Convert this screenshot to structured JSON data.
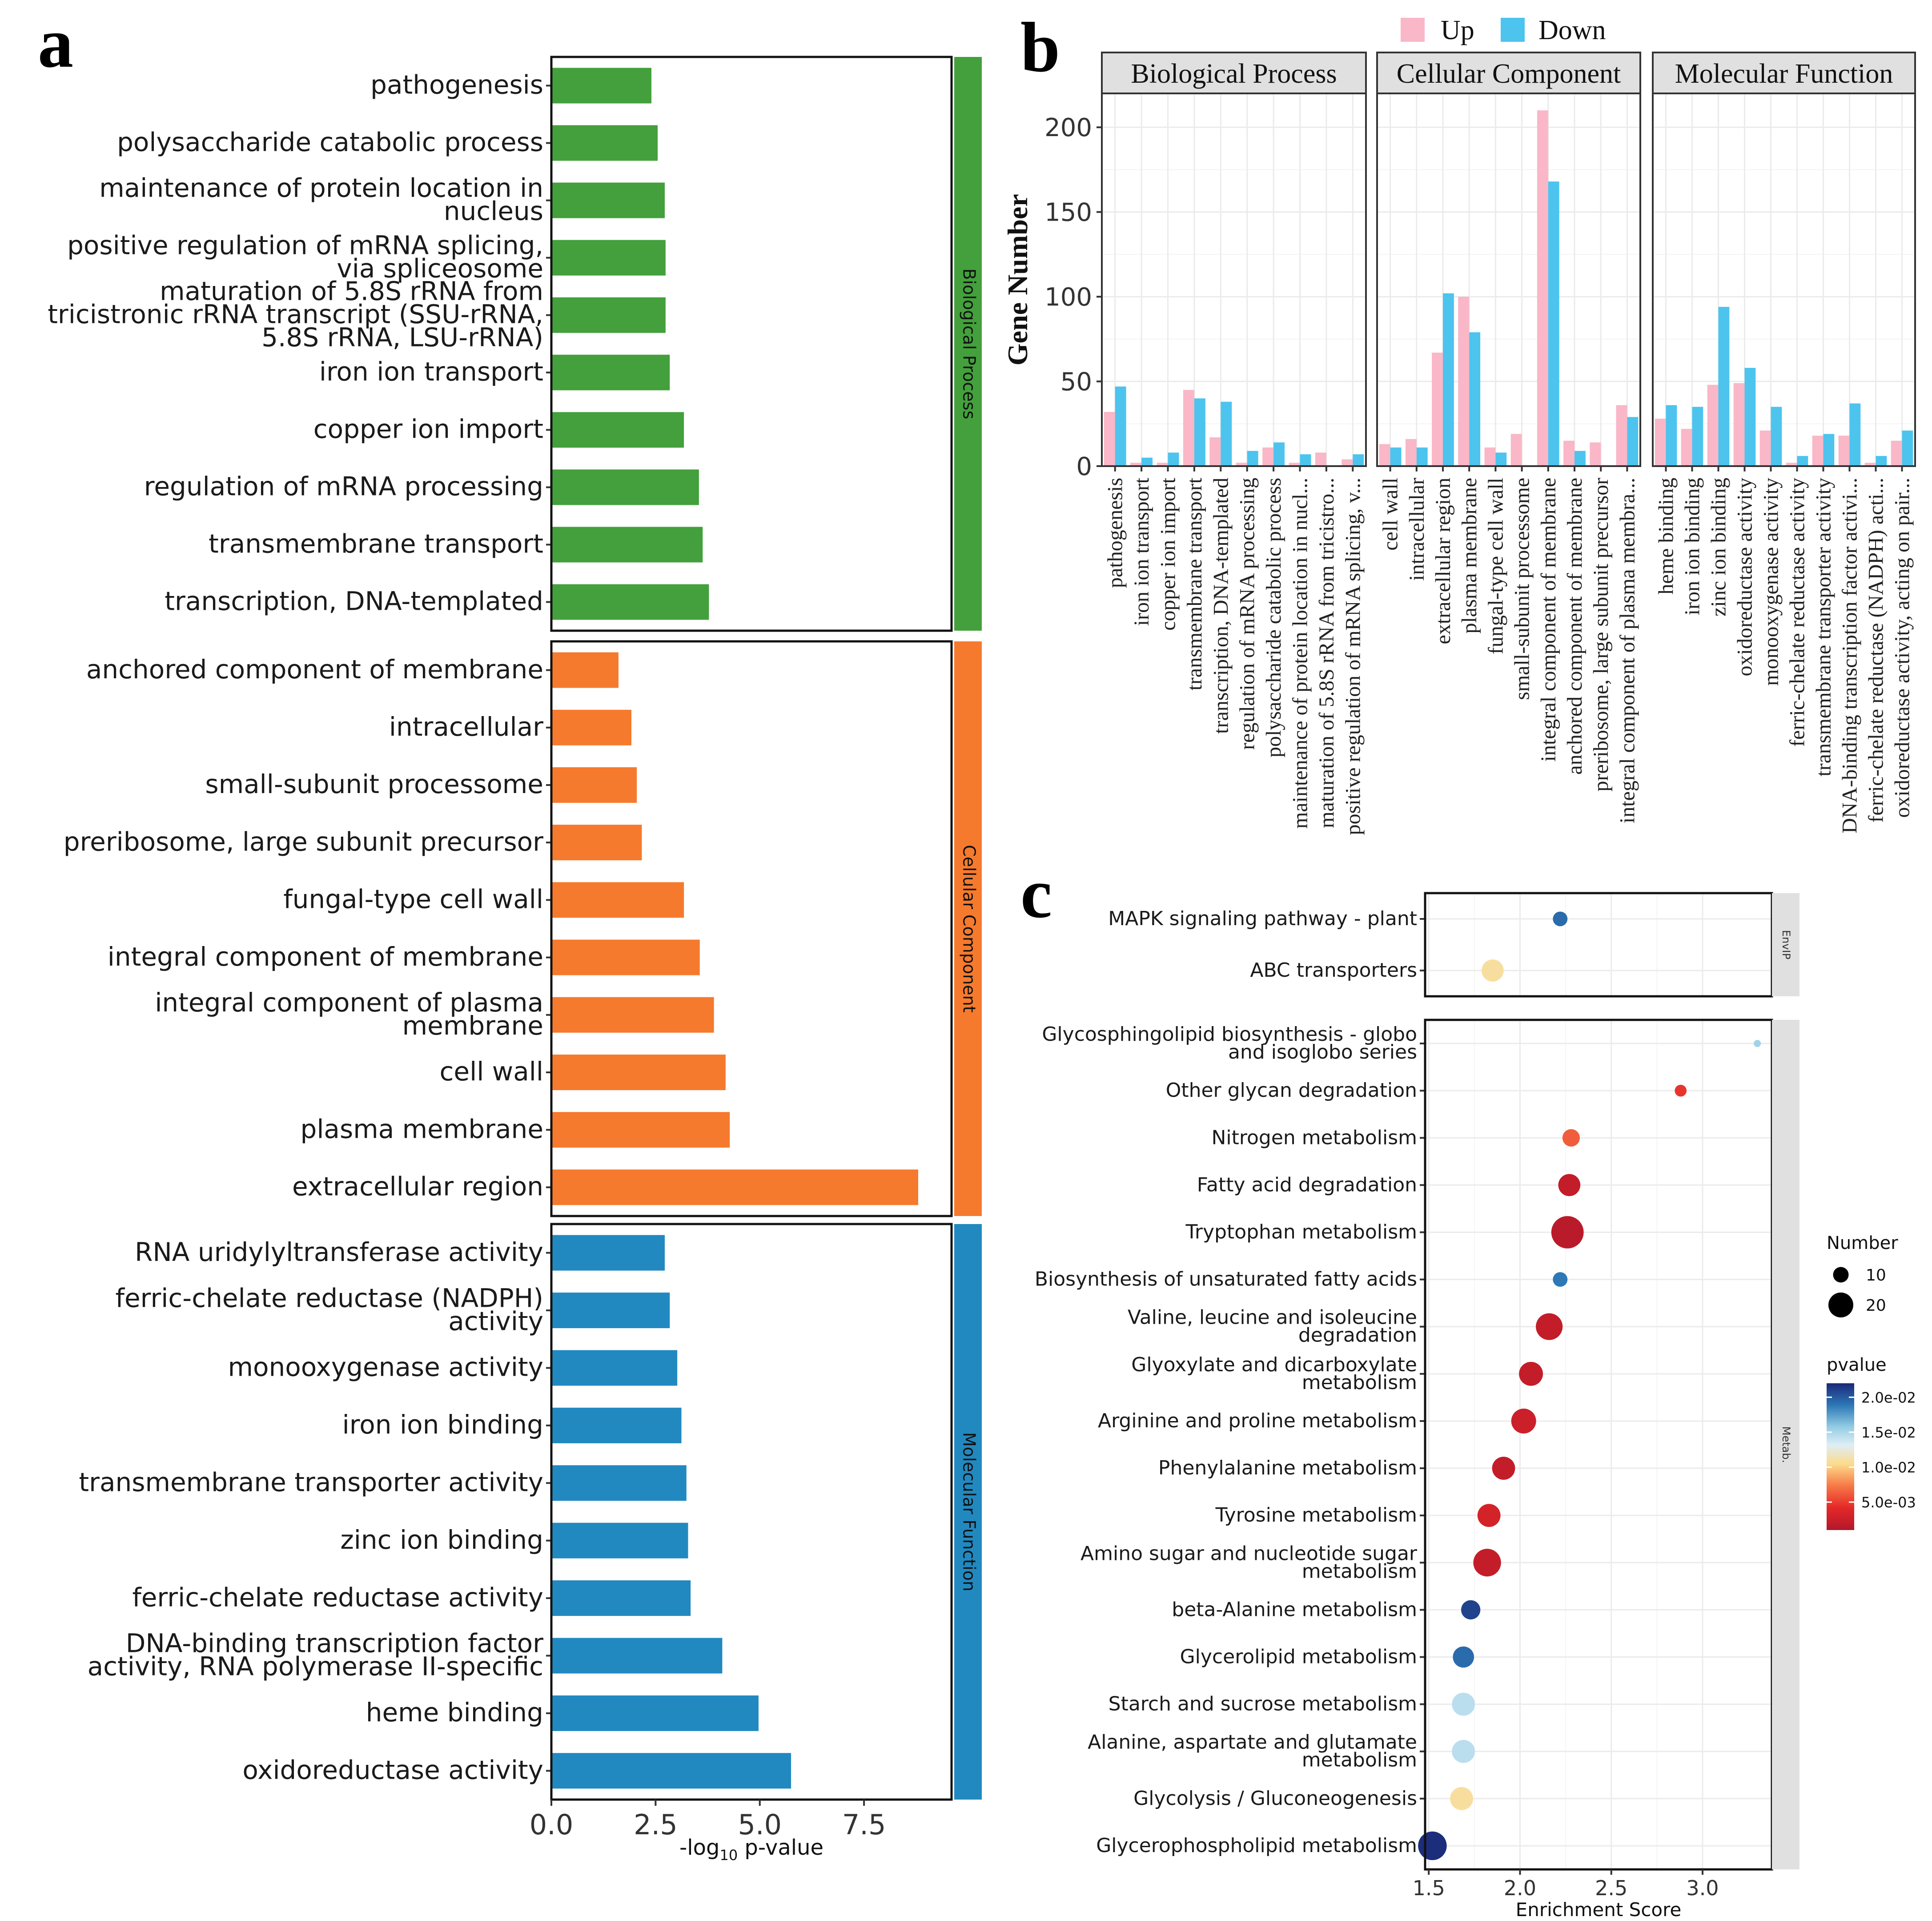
{
  "panel_labels": {
    "a": "a",
    "b": "b",
    "c": "c"
  },
  "colors": {
    "bp": "#43a03c",
    "cc": "#f57a2d",
    "mf": "#2189c0",
    "up": "#f9b7c7",
    "down": "#4cc4ee",
    "strip": "#e0e0e0",
    "grid": "#ebebeb"
  },
  "chart_data": [
    {
      "type": "bar",
      "orientation": "horizontal",
      "xlabel_prefix": "-log",
      "xlabel_sub": "10",
      "xlabel_suffix": " p-value",
      "xlim": [
        0,
        9.6
      ],
      "ticks": [
        {
          "v": 0,
          "t": "0.0"
        },
        {
          "v": 2.5,
          "t": "2.5"
        },
        {
          "v": 5,
          "t": "5.0"
        },
        {
          "v": 7.5,
          "t": "7.5"
        }
      ],
      "groups": [
        {
          "name": "Biological Process",
          "color_key": "bp",
          "items": [
            {
              "label": [
                "pathogenesis"
              ],
              "value": 2.4
            },
            {
              "label": [
                "polysaccharide catabolic process"
              ],
              "value": 2.55
            },
            {
              "label": [
                "maintenance of protein location in",
                "nucleus"
              ],
              "value": 2.72
            },
            {
              "label": [
                "positive regulation of mRNA splicing,",
                "via spliceosome"
              ],
              "value": 2.74
            },
            {
              "label": [
                "maturation of 5.8S rRNA from",
                "tricistronic rRNA transcript (SSU-rRNA,",
                "5.8S rRNA, LSU-rRNA)"
              ],
              "value": 2.74
            },
            {
              "label": [
                "iron ion transport"
              ],
              "value": 2.84
            },
            {
              "label": [
                "copper ion import"
              ],
              "value": 3.18
            },
            {
              "label": [
                "regulation of mRNA processing"
              ],
              "value": 3.54
            },
            {
              "label": [
                "transmembrane transport"
              ],
              "value": 3.63
            },
            {
              "label": [
                "transcription, DNA-templated"
              ],
              "value": 3.78
            }
          ]
        },
        {
          "name": "Cellular Component",
          "color_key": "cc",
          "items": [
            {
              "label": [
                "anchored component of membrane"
              ],
              "value": 1.61
            },
            {
              "label": [
                "intracellular"
              ],
              "value": 1.92
            },
            {
              "label": [
                "small-subunit processome"
              ],
              "value": 2.05
            },
            {
              "label": [
                "preribosome, large subunit precursor"
              ],
              "value": 2.17
            },
            {
              "label": [
                "fungal-type cell wall"
              ],
              "value": 3.18
            },
            {
              "label": [
                "integral component of membrane"
              ],
              "value": 3.56
            },
            {
              "label": [
                "integral component of plasma",
                "membrane"
              ],
              "value": 3.9
            },
            {
              "label": [
                "cell wall"
              ],
              "value": 4.18
            },
            {
              "label": [
                "plasma membrane"
              ],
              "value": 4.28
            },
            {
              "label": [
                "extracellular region"
              ],
              "value": 8.8
            }
          ]
        },
        {
          "name": "Molecular Function",
          "color_key": "mf",
          "items": [
            {
              "label": [
                "RNA uridylyltransferase activity"
              ],
              "value": 2.72
            },
            {
              "label": [
                "ferric-chelate reductase (NADPH)",
                "activity"
              ],
              "value": 2.84
            },
            {
              "label": [
                "monooxygenase activity"
              ],
              "value": 3.02
            },
            {
              "label": [
                "iron ion binding"
              ],
              "value": 3.12
            },
            {
              "label": [
                "transmembrane transporter activity"
              ],
              "value": 3.24
            },
            {
              "label": [
                "zinc ion binding"
              ],
              "value": 3.28
            },
            {
              "label": [
                "ferric-chelate reductase activity"
              ],
              "value": 3.34
            },
            {
              "label": [
                "DNA-binding transcription factor",
                "activity, RNA polymerase II-specific"
              ],
              "value": 4.1
            },
            {
              "label": [
                "heme binding"
              ],
              "value": 4.97
            },
            {
              "label": [
                "oxidoreductase activity"
              ],
              "value": 5.75
            }
          ]
        }
      ]
    },
    {
      "type": "bar",
      "orientation": "vertical",
      "ylabel": "Gene Number",
      "ylim": [
        0,
        220
      ],
      "yticks": [
        0,
        50,
        100,
        150,
        200
      ],
      "legend": {
        "position": "top",
        "entries": [
          {
            "name": "Up",
            "color_key": "up"
          },
          {
            "name": "Down",
            "color_key": "down"
          }
        ]
      },
      "facets": [
        {
          "name": "Biological Process",
          "categories": [
            "pathogenesis",
            "iron ion transport",
            "copper ion import",
            "transmembrane transport",
            "transcription, DNA-templated",
            "regulation of mRNA processing",
            "polysaccharide catabolic process",
            "maintenance of protein location in nucl...",
            "maturation of 5.8S rRNA from tricistro...",
            "positive regulation of mRNA splicing, v..."
          ],
          "up": [
            32,
            2,
            2,
            45,
            17,
            2,
            11,
            2,
            8,
            4
          ],
          "down": [
            47,
            5,
            8,
            40,
            38,
            9,
            14,
            7,
            0,
            7
          ]
        },
        {
          "name": "Cellular Component",
          "categories": [
            "cell wall",
            "intracellular",
            "extracellular region",
            "plasma membrane",
            "fungal-type cell wall",
            "small-subunit processome",
            "integral component of membrane",
            "anchored component of membrane",
            "preribosome, large subunit precursor",
            "integral component of plasma membra..."
          ],
          "up": [
            13,
            16,
            67,
            100,
            11,
            19,
            210,
            15,
            14,
            36
          ],
          "down": [
            11,
            11,
            102,
            79,
            8,
            0,
            168,
            9,
            0,
            29
          ]
        },
        {
          "name": "Molecular Function",
          "categories": [
            "heme binding",
            "iron ion binding",
            "zinc ion binding",
            "oxidoreductase activity",
            "monooxygenase activity",
            "ferric-chelate reductase activity",
            "transmembrane transporter activity",
            "DNA-binding transcription factor activi...",
            "ferric-chelate reductase (NADPH) acti...",
            "oxidoreductase activity, acting on pair..."
          ],
          "up": [
            28,
            22,
            48,
            49,
            21,
            2,
            18,
            18,
            2,
            15
          ],
          "down": [
            36,
            35,
            94,
            58,
            35,
            6,
            19,
            37,
            6,
            21
          ]
        }
      ]
    },
    {
      "type": "scatter",
      "subtype": "bubble",
      "xlabel": "Enrichment Score",
      "xlim": [
        1.48,
        3.38
      ],
      "xticks": [
        {
          "v": 1.5,
          "t": "1.5"
        },
        {
          "v": 2.0,
          "t": "2.0"
        },
        {
          "v": 2.5,
          "t": "2.5"
        },
        {
          "v": 3.0,
          "t": "3.0"
        }
      ],
      "size_legend": {
        "title": "Number",
        "entries": [
          10,
          20
        ]
      },
      "color_legend": {
        "title": "pvalue",
        "ticks": [
          "2.0e-02",
          "1.5e-02",
          "1.0e-02",
          "5.0e-03"
        ],
        "range": [
          0.001,
          0.022
        ]
      },
      "facets": [
        {
          "name": "EnvIP",
          "items": [
            {
              "pathway": [
                "MAPK signaling pathway - plant"
              ],
              "x": 2.22,
              "number": 9,
              "pvalue": 0.0195
            },
            {
              "pathway": [
                "ABC transporters"
              ],
              "x": 1.85,
              "number": 17,
              "pvalue": 0.0105
            }
          ]
        },
        {
          "name": "Metab.",
          "items": [
            {
              "pathway": [
                "Glycosphingolipid biosynthesis - globo",
                "and isoglobo series"
              ],
              "x": 3.3,
              "number": 1,
              "pvalue": 0.0155
            },
            {
              "pathway": [
                "Other glycan degradation"
              ],
              "x": 2.88,
              "number": 6,
              "pvalue": 0.0045
            },
            {
              "pathway": [
                "Nitrogen metabolism"
              ],
              "x": 2.28,
              "number": 12,
              "pvalue": 0.006
            },
            {
              "pathway": [
                "Fatty acid degradation"
              ],
              "x": 2.27,
              "number": 17,
              "pvalue": 0.002
            },
            {
              "pathway": [
                "Tryptophan metabolism"
              ],
              "x": 2.26,
              "number": 28,
              "pvalue": 0.0015
            },
            {
              "pathway": [
                "Biosynthesis of unsaturated fatty acids"
              ],
              "x": 2.22,
              "number": 9,
              "pvalue": 0.019
            },
            {
              "pathway": [
                "Valine, leucine and isoleucine",
                "degradation"
              ],
              "x": 2.16,
              "number": 22,
              "pvalue": 0.002
            },
            {
              "pathway": [
                "Glyoxylate and dicarboxylate",
                "metabolism"
              ],
              "x": 2.06,
              "number": 19,
              "pvalue": 0.002
            },
            {
              "pathway": [
                "Arginine and proline metabolism"
              ],
              "x": 2.02,
              "number": 20,
              "pvalue": 0.0025
            },
            {
              "pathway": [
                "Phenylalanine metabolism"
              ],
              "x": 1.91,
              "number": 18,
              "pvalue": 0.002
            },
            {
              "pathway": [
                "Tyrosine metabolism"
              ],
              "x": 1.83,
              "number": 18,
              "pvalue": 0.003
            },
            {
              "pathway": [
                "Amino sugar and nucleotide sugar",
                "metabolism"
              ],
              "x": 1.82,
              "number": 23,
              "pvalue": 0.002
            },
            {
              "pathway": [
                "beta-Alanine metabolism"
              ],
              "x": 1.73,
              "number": 14,
              "pvalue": 0.021
            },
            {
              "pathway": [
                "Glycerolipid metabolism"
              ],
              "x": 1.69,
              "number": 16,
              "pvalue": 0.0195
            },
            {
              "pathway": [
                "Starch and sucrose metabolism"
              ],
              "x": 1.69,
              "number": 18,
              "pvalue": 0.0145
            },
            {
              "pathway": [
                "Alanine, aspartate and glutamate",
                "metabolism"
              ],
              "x": 1.69,
              "number": 18,
              "pvalue": 0.0145
            },
            {
              "pathway": [
                "Glycolysis / Gluconeogenesis"
              ],
              "x": 1.68,
              "number": 18,
              "pvalue": 0.0105
            },
            {
              "pathway": [
                "Glycerophospholipid metabolism"
              ],
              "x": 1.52,
              "number": 24,
              "pvalue": 0.0218
            }
          ]
        }
      ]
    }
  ]
}
